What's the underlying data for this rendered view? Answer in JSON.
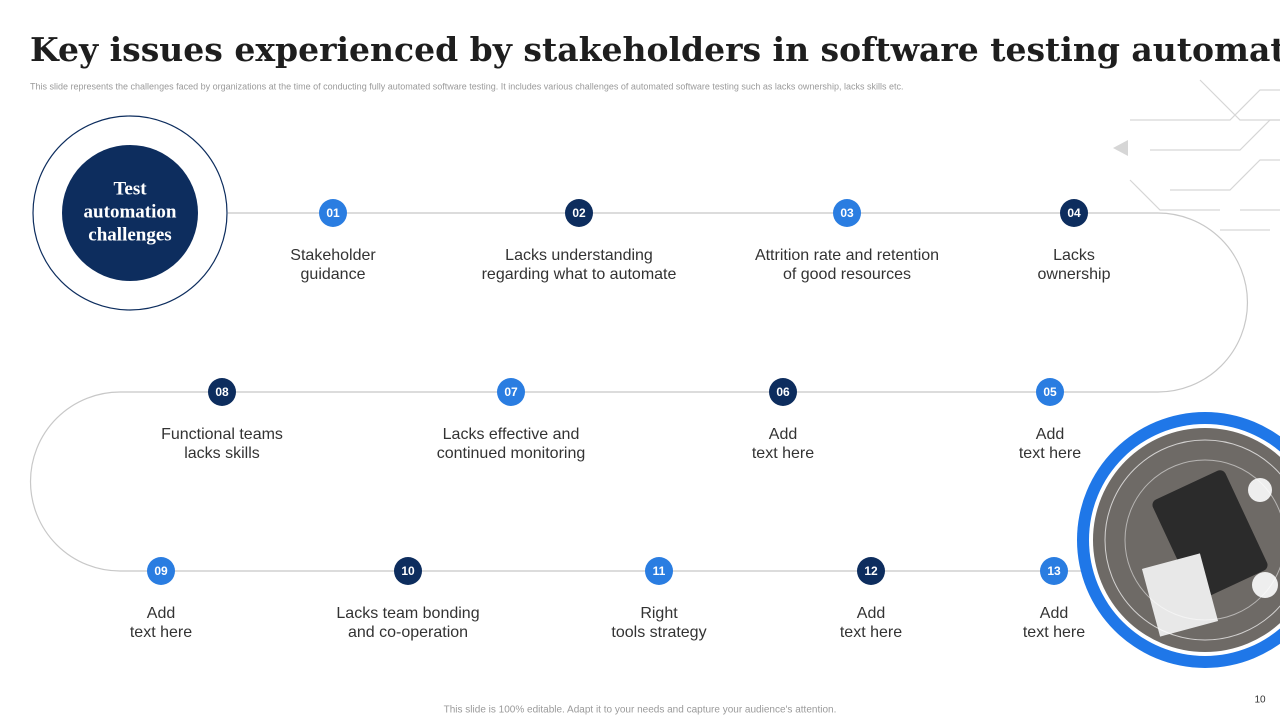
{
  "header": {
    "title": "Key issues experienced by stakeholders in software testing automation",
    "subtitle": "This slide represents the challenges faced by organizations at the time of conducting fully automated software testing. It includes various challenges of automated software testing such as lacks ownership, lacks skills etc."
  },
  "center": {
    "lines": [
      "Test",
      "automation",
      "challenges"
    ]
  },
  "nodes": [
    {
      "number": "01",
      "lines": [
        "Stakeholder",
        "guidance"
      ]
    },
    {
      "number": "02",
      "lines": [
        "Lacks understanding",
        "regarding what to automate"
      ]
    },
    {
      "number": "03",
      "lines": [
        "Attrition rate and retention",
        "of good resources"
      ]
    },
    {
      "number": "04",
      "lines": [
        "Lacks",
        "ownership"
      ]
    },
    {
      "number": "05",
      "lines": [
        "Add",
        "text here"
      ]
    },
    {
      "number": "06",
      "lines": [
        "Add",
        "text here"
      ]
    },
    {
      "number": "07",
      "lines": [
        "Lacks effective and",
        "continued monitoring"
      ]
    },
    {
      "number": "08",
      "lines": [
        "Functional teams",
        "lacks skills"
      ]
    },
    {
      "number": "09",
      "lines": [
        "Add",
        "text here"
      ]
    },
    {
      "number": "10",
      "lines": [
        "Lacks team bonding",
        "and co-operation"
      ]
    },
    {
      "number": "11",
      "lines": [
        "Right",
        "tools strategy"
      ]
    },
    {
      "number": "12",
      "lines": [
        "Add",
        "text here"
      ]
    },
    {
      "number": "13",
      "lines": [
        "Add",
        "text here"
      ]
    }
  ],
  "footer": {
    "note": "This slide is 100% editable. Adapt it to your needs and capture your audience's attention.",
    "page": "10"
  }
}
